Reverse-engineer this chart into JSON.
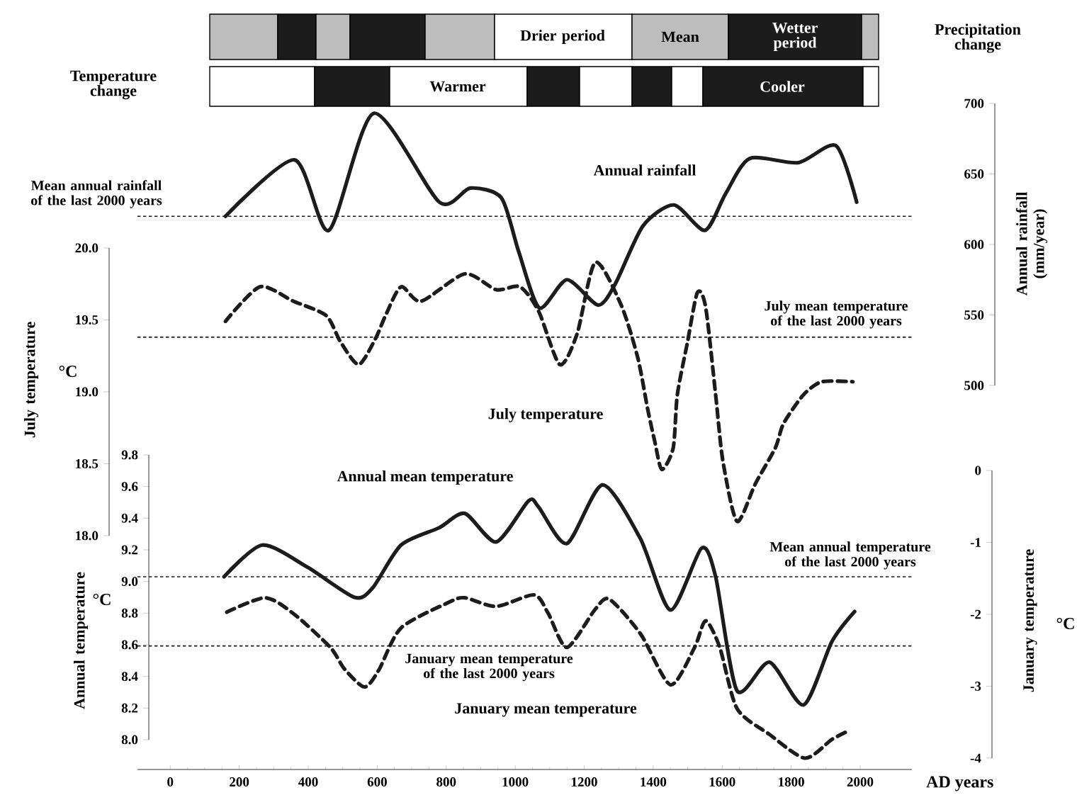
{
  "chart_data": [
    {
      "type": "other",
      "annotations": [
        "Precipitation change",
        "Temperature change",
        "Drier period",
        "Mean",
        "Wetter period",
        "Warmer",
        "Cooler"
      ]
    },
    {
      "type": "line",
      "ylabel": "July temperature",
      "y2label": "Annual rainfall (mm/year)",
      "annotations": [
        "°C"
      ],
      "tick_labels": "y",
      "xlim": [
        -95,
        2150
      ],
      "ylim": [
        18,
        20
      ],
      "yticks": [
        {
          "value": 18,
          "label": "18.0"
        },
        18.5,
        {
          "value": 19,
          "label": "19.0"
        },
        19.5,
        {
          "value": 20,
          "label": "20.0"
        }
      ],
      "y2lim": [
        500,
        700
      ],
      "y2ticks": [
        500,
        550,
        600,
        650,
        700
      ],
      "marker": "none",
      "series": [
        {
          "name": "Annual rainfall",
          "axis": "y2",
          "color": "#1c1c1c",
          "line_style": "solid",
          "x": [
            160,
            360,
            460,
            590,
            780,
            870,
            960,
            1010,
            1070,
            1150,
            1240,
            1290,
            1370,
            1460,
            1550,
            1610,
            1680,
            1820,
            1930,
            1990
          ],
          "values": [
            620,
            660,
            610,
            693,
            630,
            640,
            633,
            595,
            555,
            575,
            557,
            572,
            613,
            628,
            610,
            636,
            661,
            658,
            670,
            630
          ]
        },
        {
          "name": "July temperature",
          "color": "#1c1c1c",
          "line_style": "dashed",
          "x": [
            160,
            260,
            357,
            452,
            493,
            546,
            595,
            624,
            669,
            727,
            854,
            945,
            1014,
            1068,
            1129,
            1179,
            1232,
            1306,
            1355,
            1384,
            1405,
            1425,
            1458,
            1470,
            1499,
            1528,
            1552,
            1581,
            1602,
            1643,
            1696,
            1754,
            1778,
            1836,
            1889,
            1979
          ],
          "values": [
            19.49,
            19.73,
            19.63,
            19.53,
            19.35,
            19.19,
            19.37,
            19.53,
            19.73,
            19.63,
            19.82,
            19.71,
            19.73,
            19.56,
            19.19,
            19.4,
            19.9,
            19.61,
            19.24,
            18.88,
            18.65,
            18.46,
            18.61,
            18.98,
            19.34,
            19.69,
            19.59,
            18.98,
            18.52,
            18.1,
            18.36,
            18.61,
            18.78,
            18.98,
            19.07,
            19.07
          ]
        }
      ],
      "ref_lines": [
        {
          "axis": "y2",
          "value": 620,
          "label": "Mean annual rainfall of the last 2000 years",
          "color": "#1c1c1c",
          "line_style": "dashed"
        },
        {
          "axis": "y",
          "value": 19.38,
          "label": "July mean temperature of the last 2000 years",
          "color": "#1c1c1c",
          "line_style": "dashed"
        }
      ]
    },
    {
      "type": "line",
      "xlabel": "AD years",
      "ylabel": "Annual temperature",
      "y2label": "January temperature",
      "annotations": [
        "°C",
        "°C"
      ],
      "xlim": [
        -95,
        2150
      ],
      "xticks": [
        0,
        200,
        400,
        600,
        800,
        1000,
        1200,
        1400,
        1600,
        1800,
        2000
      ],
      "ylim": [
        8,
        9.8
      ],
      "yticks": [
        {
          "value": 8,
          "label": "8.0"
        },
        8.2,
        8.4,
        8.6,
        8.8,
        {
          "value": 9,
          "label": "9.0"
        },
        9.2,
        9.4,
        9.6,
        9.8
      ],
      "y2lim": [
        -4,
        0
      ],
      "y2ticks": [
        -4,
        -3,
        -2,
        -1,
        0
      ],
      "marker": "none",
      "series": [
        {
          "name": "Annual mean temperature",
          "color": "#1c1c1c",
          "line_style": "solid",
          "x": [
            156,
            267,
            398,
            534,
            587,
            669,
            780,
            854,
            945,
            1039,
            1068,
            1150,
            1253,
            1363,
            1450,
            1540,
            1581,
            1643,
            1737,
            1836,
            1918,
            1984
          ],
          "values": [
            9.03,
            9.23,
            9.09,
            8.9,
            8.96,
            9.23,
            9.34,
            9.43,
            9.25,
            9.51,
            9.47,
            9.24,
            9.61,
            9.27,
            8.82,
            9.21,
            9.03,
            8.31,
            8.49,
            8.22,
            8.62,
            8.81
          ]
        },
        {
          "name": "January mean temperature",
          "axis": "y2",
          "color": "#1c1c1c",
          "line_style": "dashed",
          "x": [
            164,
            275,
            357,
            464,
            505,
            563,
            604,
            669,
            809,
            854,
            945,
            1055,
            1096,
            1150,
            1232,
            1273,
            1363,
            1450,
            1520,
            1552,
            1593,
            1643,
            1737,
            1840,
            1918,
            1971
          ],
          "values": [
            -1.97,
            -1.77,
            -1.99,
            -2.46,
            -2.76,
            -3.01,
            -2.78,
            -2.19,
            -1.83,
            -1.77,
            -1.89,
            -1.73,
            -1.99,
            -2.46,
            -1.93,
            -1.79,
            -2.27,
            -2.98,
            -2.46,
            -2.09,
            -2.46,
            -3.31,
            -3.67,
            -4.0,
            -3.74,
            -3.61
          ]
        }
      ],
      "ref_lines": [
        {
          "axis": "y",
          "value": 9.03,
          "label": "Mean annual temperature of the last 2000 years",
          "color": "#1c1c1c",
          "line_style": "dashed"
        },
        {
          "axis": "y2",
          "value": -2.44,
          "label": "January mean temperature of the last 2000 years",
          "color": "#1c1c1c",
          "line_style": "dashed"
        }
      ]
    }
  ]
}
